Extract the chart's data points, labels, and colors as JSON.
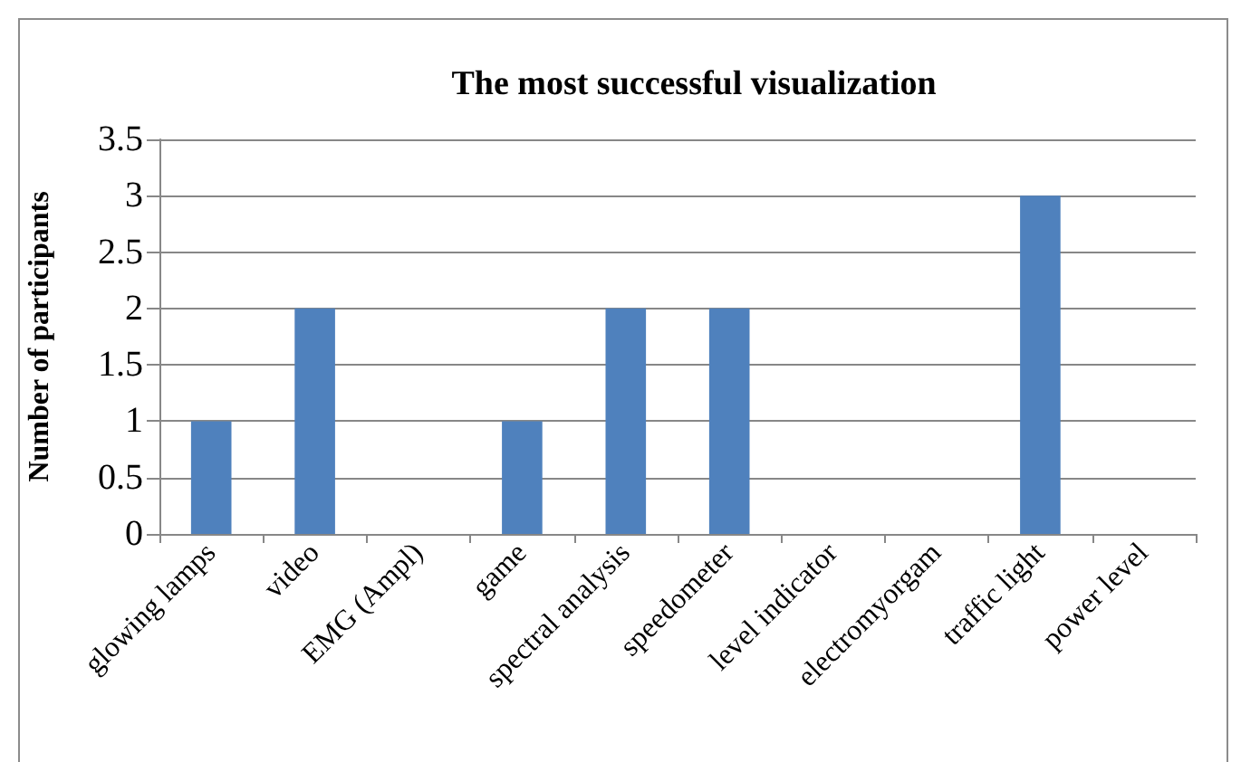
{
  "chart_data": {
    "type": "bar",
    "title": "The most successful visualization",
    "ylabel": "Number of participants",
    "categories": [
      "glowing lamps",
      "video",
      "EMG (Ampl)",
      "game",
      "spectral analysis",
      "speedometer",
      "level indicator",
      "electromyorgam",
      "traffic light",
      "power level"
    ],
    "values": [
      1,
      2,
      0,
      1,
      2,
      2,
      0,
      0,
      3,
      0
    ],
    "color": "#4f81bd",
    "ylim": [
      0,
      3.5
    ],
    "yticks": [
      0,
      0.5,
      1,
      1.5,
      2,
      2.5,
      3,
      3.5
    ],
    "grid": "y"
  }
}
